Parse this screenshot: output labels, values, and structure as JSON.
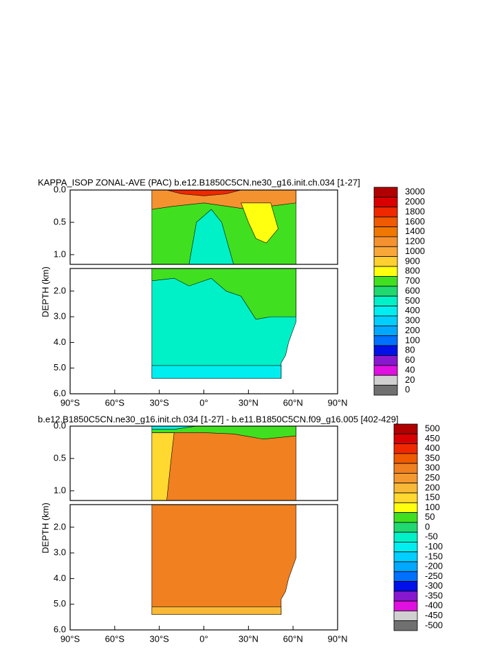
{
  "chart_data": [
    {
      "type": "contour",
      "title": "KAPPA_ISOP ZONAL-AVE (PAC) b.e12.B1850C5CN.ne30_g16.init.ch.034 [1-27]",
      "ylabel": "DEPTH (km)",
      "xlim": [
        -90,
        90
      ],
      "xticks": [
        {
          "value": -90,
          "label": "90°S"
        },
        {
          "value": -60,
          "label": "60°S"
        },
        {
          "value": -30,
          "label": "30°S"
        },
        {
          "value": 0,
          "label": "0°"
        },
        {
          "value": 30,
          "label": "30°N"
        },
        {
          "value": 60,
          "label": "60°N"
        },
        {
          "value": 90,
          "label": "90°N"
        }
      ],
      "sections": [
        {
          "ylim": [
            0,
            1.15
          ],
          "yticks": [
            {
              "value": 0,
              "label": "0.0"
            },
            {
              "value": 0.5,
              "label": "0.5"
            },
            {
              "value": 1,
              "label": "1.0"
            }
          ]
        },
        {
          "ylim": [
            1.12,
            6
          ],
          "yticks": [
            {
              "value": 2,
              "label": "2.0"
            },
            {
              "value": 3,
              "label": "3.0"
            },
            {
              "value": 4,
              "label": "4.0"
            },
            {
              "value": 5,
              "label": "5.0"
            },
            {
              "value": 6,
              "label": "6.0"
            }
          ]
        }
      ],
      "colorbar": {
        "levels": [
          3000,
          2000,
          1800,
          1600,
          1400,
          1200,
          1000,
          900,
          800,
          700,
          600,
          500,
          400,
          300,
          200,
          100,
          80,
          60,
          40,
          20,
          0
        ],
        "colors": [
          "#b00000",
          "#d80000",
          "#f02800",
          "#f05a00",
          "#f07800",
          "#f49230",
          "#f8a838",
          "#ffd030",
          "#ffff10",
          "#40e020",
          "#20d870",
          "#00f0c8",
          "#00eef0",
          "#00cfff",
          "#00a8ff",
          "#0070ff",
          "#0010e8",
          "#8818d0",
          "#e010e0",
          "#d0d0d0",
          "#707070"
        ]
      }
    },
    {
      "type": "contour",
      "title": "b.e12.B1850C5CN.ne30_g16.init.ch.034 [1-27] - b.e11.B1850C5CN.f09_g16.005 [402-429]",
      "ylabel": "DEPTH (km)",
      "xlim": [
        -90,
        90
      ],
      "xticks": [
        {
          "value": -90,
          "label": "90°S"
        },
        {
          "value": -60,
          "label": "60°S"
        },
        {
          "value": -30,
          "label": "30°S"
        },
        {
          "value": 0,
          "label": "0°"
        },
        {
          "value": 30,
          "label": "30°N"
        },
        {
          "value": 60,
          "label": "60°N"
        },
        {
          "value": 90,
          "label": "90°N"
        }
      ],
      "sections": [
        {
          "ylim": [
            0,
            1.15
          ],
          "yticks": [
            {
              "value": 0,
              "label": "0.0"
            },
            {
              "value": 0.5,
              "label": "0.5"
            },
            {
              "value": 1,
              "label": "1.0"
            }
          ]
        },
        {
          "ylim": [
            1.12,
            6
          ],
          "yticks": [
            {
              "value": 2,
              "label": "2.0"
            },
            {
              "value": 3,
              "label": "3.0"
            },
            {
              "value": 4,
              "label": "4.0"
            },
            {
              "value": 5,
              "label": "5.0"
            },
            {
              "value": 6,
              "label": "6.0"
            }
          ]
        }
      ],
      "colorbar": {
        "levels": [
          500,
          450,
          400,
          350,
          300,
          250,
          200,
          150,
          100,
          50,
          0,
          -50,
          -100,
          -150,
          -200,
          -250,
          -300,
          -350,
          -400,
          -450,
          -500
        ],
        "colors": [
          "#b00000",
          "#d80000",
          "#f02800",
          "#f05a00",
          "#f08020",
          "#f49830",
          "#f8b838",
          "#ffd830",
          "#ffff10",
          "#40e020",
          "#20d870",
          "#00f0c8",
          "#00eef0",
          "#00cfff",
          "#00a8ff",
          "#0070ff",
          "#0010e8",
          "#8818d0",
          "#e010e0",
          "#d0d0d0",
          "#707070"
        ]
      }
    }
  ]
}
